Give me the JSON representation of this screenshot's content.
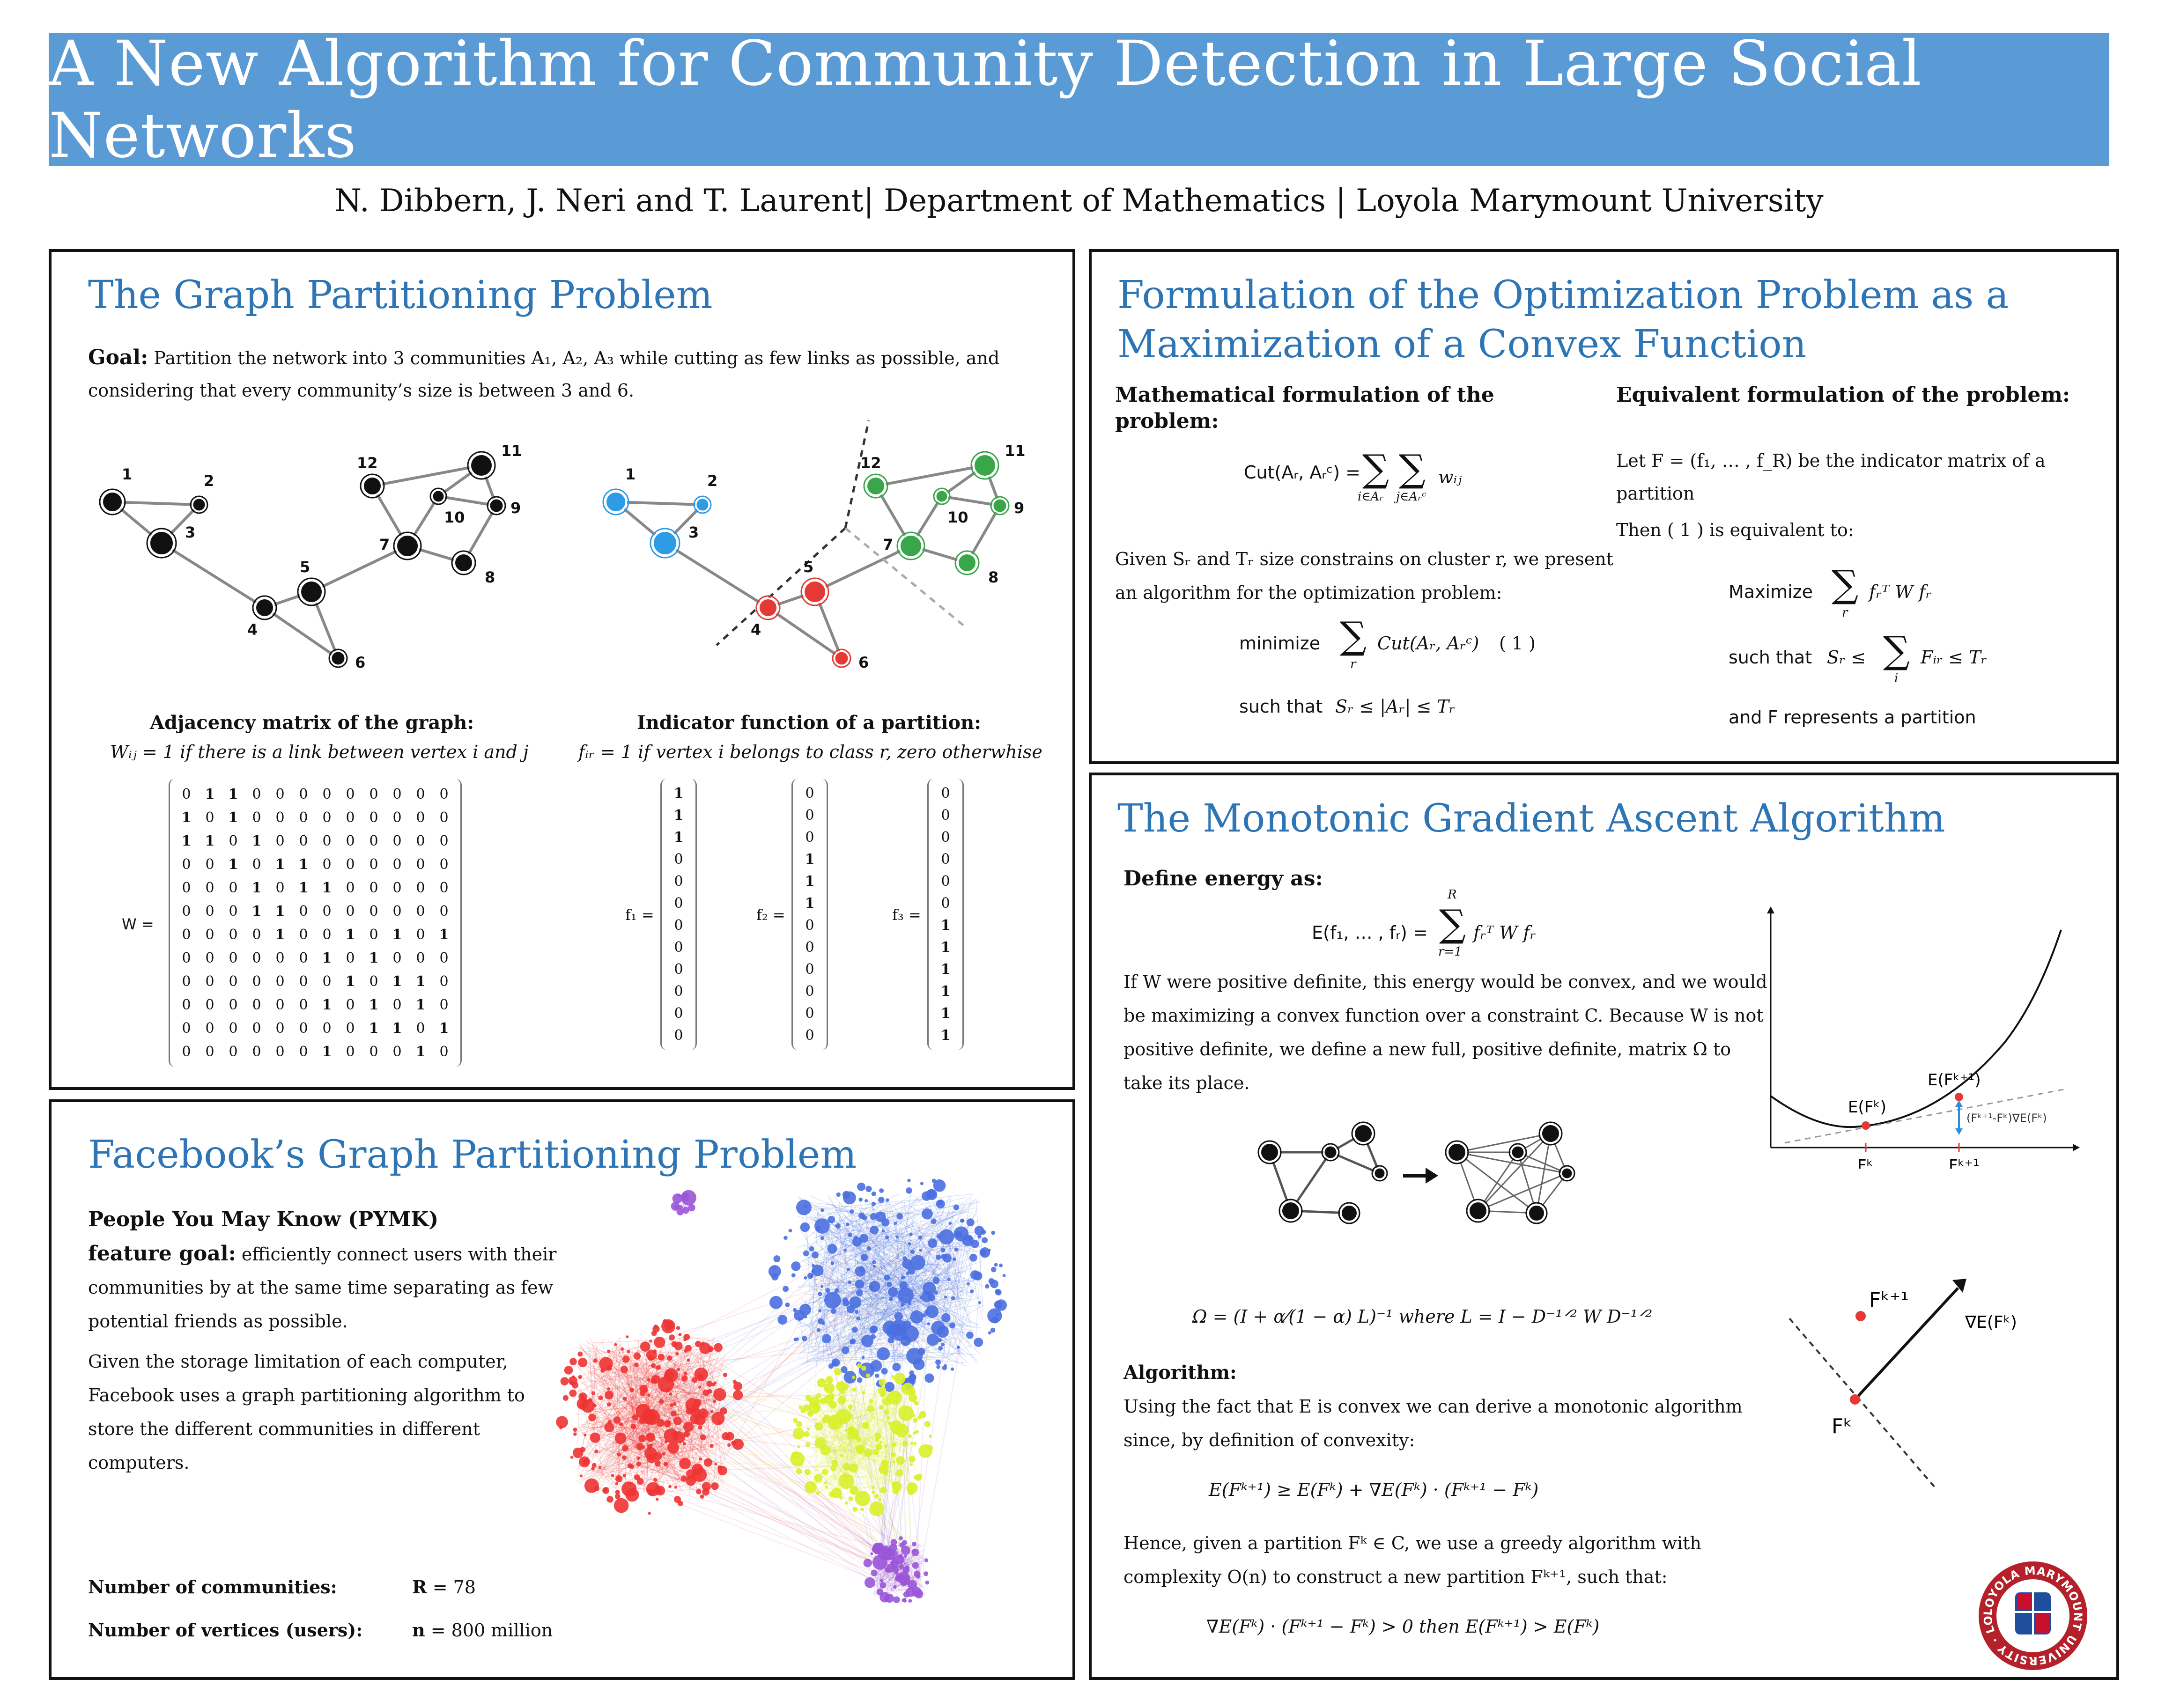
{
  "header": {
    "title": "A New Algorithm for Community Detection in Large Social Networks",
    "authors": "N. Dibbern, J. Neri and T. Laurent| Department of Mathematics | Loyola Marymount University"
  },
  "graph_panel": {
    "title": "The Graph Partitioning Problem",
    "goal_label": "Goal:",
    "goal_text": "Partition the network into 3 communities A₁, A₂, A₃  while cutting as few links as possible, and",
    "goal_text2": "considering that every community’s size is between 3 and 6.",
    "node_labels": [
      "1",
      "2",
      "3",
      "4",
      "5",
      "6",
      "7",
      "8",
      "9",
      "10",
      "11",
      "12"
    ],
    "adjacency_heading": "Adjacency matrix of the graph:",
    "adjacency_formula": "Wᵢⱼ = 1 if there is a link between vertex i and j",
    "w_label": "W =",
    "w_matrix": [
      [
        "0",
        "1",
        "1",
        "0",
        "0",
        "0",
        "0",
        "0",
        "0",
        "0",
        "0",
        "0"
      ],
      [
        "1",
        "0",
        "1",
        "0",
        "0",
        "0",
        "0",
        "0",
        "0",
        "0",
        "0",
        "0"
      ],
      [
        "1",
        "1",
        "0",
        "1",
        "0",
        "0",
        "0",
        "0",
        "0",
        "0",
        "0",
        "0"
      ],
      [
        "0",
        "0",
        "1",
        "0",
        "1",
        "1",
        "0",
        "0",
        "0",
        "0",
        "0",
        "0"
      ],
      [
        "0",
        "0",
        "0",
        "1",
        "0",
        "1",
        "1",
        "0",
        "0",
        "0",
        "0",
        "0"
      ],
      [
        "0",
        "0",
        "0",
        "1",
        "1",
        "0",
        "0",
        "0",
        "0",
        "0",
        "0",
        "0"
      ],
      [
        "0",
        "0",
        "0",
        "0",
        "1",
        "0",
        "0",
        "1",
        "0",
        "1",
        "0",
        "1"
      ],
      [
        "0",
        "0",
        "0",
        "0",
        "0",
        "0",
        "1",
        "0",
        "1",
        "0",
        "0",
        "0"
      ],
      [
        "0",
        "0",
        "0",
        "0",
        "0",
        "0",
        "0",
        "1",
        "0",
        "1",
        "1",
        "0"
      ],
      [
        "0",
        "0",
        "0",
        "0",
        "0",
        "0",
        "1",
        "0",
        "1",
        "0",
        "1",
        "0"
      ],
      [
        "0",
        "0",
        "0",
        "0",
        "0",
        "0",
        "0",
        "0",
        "1",
        "1",
        "0",
        "1"
      ],
      [
        "0",
        "0",
        "0",
        "0",
        "0",
        "0",
        "1",
        "0",
        "0",
        "0",
        "1",
        "0"
      ]
    ],
    "indicator_heading": "Indicator function of a partition:",
    "indicator_formula": "fᵢᵣ = 1 if vertex i belongs to class r, zero otherwhise",
    "f1_label": "f₁ =",
    "f2_label": "f₂ =",
    "f3_label": "f₃ =",
    "f1": [
      "1",
      "1",
      "1",
      "0",
      "0",
      "0",
      "0",
      "0",
      "0",
      "0",
      "0",
      "0"
    ],
    "f2": [
      "0",
      "0",
      "0",
      "1",
      "1",
      "1",
      "0",
      "0",
      "0",
      "0",
      "0",
      "0"
    ],
    "f3": [
      "0",
      "0",
      "0",
      "0",
      "0",
      "0",
      "1",
      "1",
      "1",
      "1",
      "1",
      "1"
    ]
  },
  "facebook_panel": {
    "title": "Facebook’s Graph Partitioning Problem",
    "pymk": "People You May Know (PYMK)",
    "feature_goal_label": "feature goal:",
    "feature_goal_text1": "efficiently connect users with their",
    "feature_goal_text2": "communities by at the same time separating as few",
    "feature_goal_text3": "potential friends as possible.",
    "storage_text1": "Given the storage limitation of each computer,",
    "storage_text2": "Facebook uses a graph partitioning algorithm to",
    "storage_text3": "store the different communities in different",
    "storage_text4": "computers.",
    "communities_label": "Number of communities:",
    "communities_value_symbol": "R",
    "communities_value": "= 78",
    "vertices_label": "Number of vertices (users):",
    "vertices_value_symbol": "n",
    "vertices_value": "= 800 million",
    "colors": {
      "red": "#ee3333",
      "blue": "#4a6fe0",
      "yellow": "#d9f02a",
      "purple": "#9a55d8"
    }
  },
  "formulation_panel": {
    "title_line1": "Formulation of the Optimization Problem as a",
    "title_line2": "Maximization of a Convex Function",
    "math_heading_line1": "Mathematical formulation of the",
    "math_heading_line2": "problem:",
    "cut_lhs": "Cut(Aᵣ, Aᵣᶜ) =",
    "cut_sum1_sub": "i∈Aᵣ",
    "cut_sum2_sub": "j∈Aᵣᶜ",
    "cut_term": "wᵢⱼ",
    "given_text1": "Given Sᵣ and  Tᵣ size constrains on cluster r, we present",
    "given_text2": "an algorithm for the optimization problem:",
    "minimize_label": "minimize",
    "minimize_term": "Cut(Aᵣ, Aᵣᶜ)",
    "sum_sub_r": "r",
    "eq_number": "( 1 )",
    "such_that_label": "such that",
    "such_that_expr": "Sᵣ ≤  |Aᵣ|  ≤ Tᵣ",
    "equiv_heading": "Equivalent formulation of the problem:",
    "let_text": "Let   F  = (f₁, … , f_R)  be the indicator matrix of a",
    "partition_text": "partition",
    "then_text": "Then ( 1 ) is equivalent to:",
    "maximize_label": "Maximize",
    "maximize_term": "fᵣᵀ W fᵣ",
    "such_that2_label": "such that",
    "such_that2_lhs": "Sᵣ  ≤",
    "such_that2_term": "Fᵢᵣ ≤ Tᵣ",
    "sum_sub_i": "i",
    "and_text": "and F represents a partition"
  },
  "gradient_panel": {
    "title": "The Monotonic Gradient Ascent Algorithm",
    "define_heading": "Define energy as:",
    "energy_lhs": "E(f₁, … , fᵣ) =",
    "energy_sum_top": "R",
    "energy_sum_bottom": "r=1",
    "energy_term": "fᵣᵀ W fᵣ",
    "para1_line1": "If W were positive definite, this energy would be convex, and we would",
    "para1_line2": "be maximizing a convex function over a constraint  C. Because  W is not",
    "para1_line3": "positive definite, we define a new full, positive definite, matrix Ω to",
    "para1_line4": "take its place.",
    "omega_formula": "Ω = (I + α⁄(1 − α) L)⁻¹  where L = I − D⁻¹ᐟ² W D⁻¹ᐟ²",
    "algorithm_heading": "Algorithm:",
    "algo_line1": "Using the fact that E is convex we can derive a monotonic algorithm",
    "algo_line2": "since, by definition of convexity:",
    "convexity_formula": "E(Fᵏ⁺¹) ≥ E(Fᵏ) + ∇E(Fᵏ) · (Fᵏ⁺¹ − Fᵏ)",
    "hence_line1": "Hence, given a partition Fᵏ ∈ C,  we use a greedy algorithm with",
    "hence_line2": "complexity  O(n)  to construct a new partition Fᵏ⁺¹, such that:",
    "final_formula": "∇E(Fᵏ) · (Fᵏ⁺¹ − Fᵏ) > 0   then   E(Fᵏ⁺¹) > E(Fᵏ)",
    "plot_labels": {
      "e_k1": "E(Fᵏ⁺¹)",
      "e_k": "E(Fᵏ)",
      "tangent": "(Fᵏ⁺¹-Fᵏ)∇E(Fᵏ)",
      "x_k": "Fᵏ",
      "x_k1": "Fᵏ⁺¹"
    },
    "vector_labels": {
      "f_k1": "Fᵏ⁺¹",
      "grad": "∇E(Fᵏ)",
      "f_k": "Fᵏ"
    },
    "seal_text": "LOYOLA MARYMOUNT UNIVERSITY · LOS ANGELES ·"
  }
}
